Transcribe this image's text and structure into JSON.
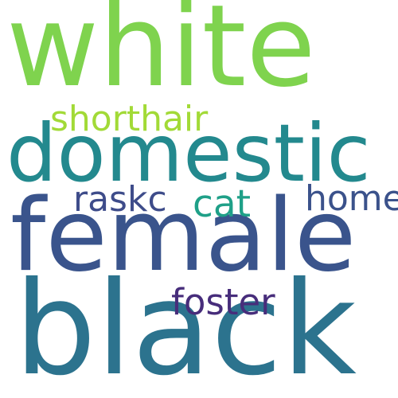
{
  "word_cloud": {
    "background": "#ffffff",
    "words": [
      {
        "id": "white",
        "text": "white",
        "color": "#7fd34e"
      },
      {
        "id": "domestic",
        "text": "domestic",
        "color": "#23898e"
      },
      {
        "id": "shorthair",
        "text": "shorthair",
        "color": "#a2da37"
      },
      {
        "id": "raskc",
        "text": "raskc",
        "color": "#3e4c8a"
      },
      {
        "id": "cat",
        "text": "cat",
        "color": "#1fa088"
      },
      {
        "id": "home",
        "text": "home",
        "color": "#3b528b"
      },
      {
        "id": "female",
        "text": "female",
        "color": "#3a548c"
      },
      {
        "id": "foster",
        "text": "foster",
        "color": "#472d7b"
      },
      {
        "id": "black",
        "text": "black",
        "color": "#2c738e"
      }
    ]
  }
}
